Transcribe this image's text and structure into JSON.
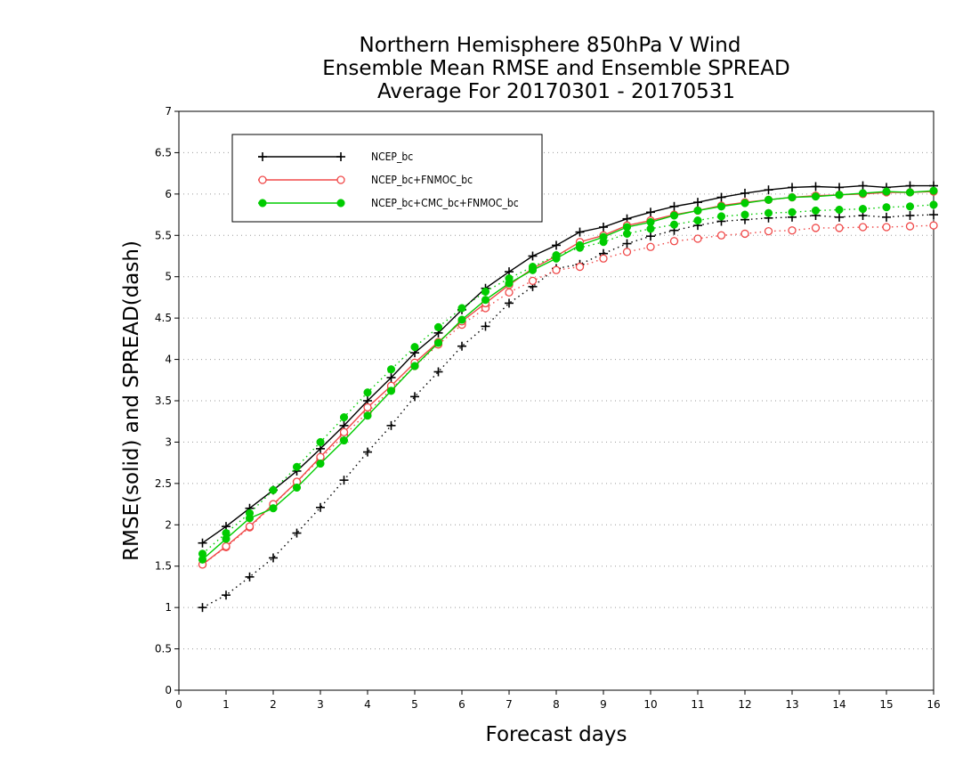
{
  "chart_data": {
    "type": "line",
    "title_lines": [
      "Northern Hemisphere 850hPa V Wind",
      "Ensemble Mean RMSE and Ensemble SPREAD",
      "Average For 20170301 - 20170531"
    ],
    "xlabel": "Forecast days",
    "ylabel": "RMSE(solid) and SPREAD(dash)",
    "xlim": [
      0,
      16
    ],
    "ylim": [
      0,
      7
    ],
    "xticks": [
      "0",
      "1",
      "2",
      "3",
      "4",
      "5",
      "6",
      "7",
      "8",
      "9",
      "10",
      "11",
      "12",
      "13",
      "14",
      "15",
      "16"
    ],
    "yticks": [
      "0",
      "0.5",
      "1",
      "1.5",
      "2",
      "2.5",
      "3",
      "3.5",
      "4",
      "4.5",
      "5",
      "5.5",
      "6",
      "6.5",
      "7"
    ],
    "grid": "horizontal dotted",
    "legend_position": "top-left",
    "x": [
      0.5,
      1,
      1.5,
      2,
      2.5,
      3,
      3.5,
      4,
      4.5,
      5,
      5.5,
      6,
      6.5,
      7,
      7.5,
      8,
      8.5,
      9,
      9.5,
      10,
      10.5,
      11,
      11.5,
      12,
      12.5,
      13,
      13.5,
      14,
      14.5,
      15,
      15.5,
      16
    ],
    "series": [
      {
        "name": "NCEP_bc",
        "color": "#000000",
        "marker": "plus",
        "rmse": [
          1.78,
          1.98,
          2.2,
          2.42,
          2.65,
          2.92,
          3.2,
          3.5,
          3.78,
          4.08,
          4.32,
          4.6,
          4.86,
          5.06,
          5.25,
          5.38,
          5.54,
          5.6,
          5.7,
          5.78,
          5.85,
          5.9,
          5.96,
          6.01,
          6.05,
          6.08,
          6.09,
          6.08,
          6.1,
          6.08,
          6.1,
          6.1
        ],
        "spread": [
          1.0,
          1.15,
          1.37,
          1.6,
          1.9,
          2.21,
          2.54,
          2.88,
          3.2,
          3.55,
          3.85,
          4.16,
          4.4,
          4.68,
          4.88,
          5.1,
          5.15,
          5.28,
          5.4,
          5.49,
          5.56,
          5.62,
          5.67,
          5.69,
          5.71,
          5.72,
          5.74,
          5.72,
          5.74,
          5.72,
          5.74,
          5.75
        ]
      },
      {
        "name": "NCEP_bc+FNMOC_bc",
        "color": "#f04848",
        "marker": "open-circle",
        "rmse": [
          1.52,
          1.74,
          1.98,
          2.25,
          2.52,
          2.82,
          3.12,
          3.42,
          3.68,
          3.96,
          4.21,
          4.46,
          4.68,
          4.9,
          5.1,
          5.25,
          5.42,
          5.5,
          5.62,
          5.68,
          5.75,
          5.8,
          5.86,
          5.9,
          5.93,
          5.96,
          5.98,
          5.99,
          6.0,
          6.02,
          6.02,
          6.03
        ],
        "spread": [
          1.52,
          1.73,
          1.97,
          2.24,
          2.52,
          2.8,
          3.08,
          3.36,
          3.64,
          3.92,
          4.18,
          4.42,
          4.62,
          4.81,
          4.95,
          5.08,
          5.12,
          5.22,
          5.3,
          5.36,
          5.43,
          5.46,
          5.5,
          5.52,
          5.55,
          5.56,
          5.59,
          5.59,
          5.6,
          5.6,
          5.61,
          5.62
        ]
      },
      {
        "name": "NCEP_bc+CMC_bc+FNMOC_bc",
        "color": "#00cc00",
        "marker": "filled-circle",
        "rmse": [
          1.58,
          1.83,
          2.08,
          2.2,
          2.45,
          2.74,
          3.02,
          3.32,
          3.62,
          3.92,
          4.2,
          4.48,
          4.72,
          4.92,
          5.08,
          5.22,
          5.38,
          5.48,
          5.6,
          5.66,
          5.74,
          5.8,
          5.85,
          5.89,
          5.93,
          5.96,
          5.97,
          5.99,
          6.01,
          6.03,
          6.02,
          6.04
        ],
        "spread": [
          1.65,
          1.9,
          2.14,
          2.42,
          2.7,
          3.0,
          3.3,
          3.6,
          3.88,
          4.15,
          4.39,
          4.62,
          4.82,
          4.98,
          5.12,
          5.26,
          5.35,
          5.42,
          5.52,
          5.58,
          5.63,
          5.68,
          5.73,
          5.75,
          5.77,
          5.78,
          5.8,
          5.81,
          5.82,
          5.84,
          5.85,
          5.87
        ]
      }
    ]
  }
}
